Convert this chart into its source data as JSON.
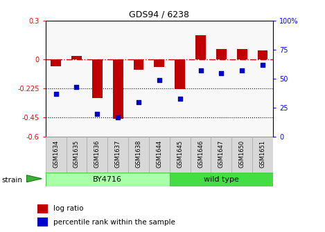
{
  "title": "GDS94 / 6238",
  "samples": [
    "GSM1634",
    "GSM1635",
    "GSM1636",
    "GSM1637",
    "GSM1638",
    "GSM1644",
    "GSM1645",
    "GSM1646",
    "GSM1647",
    "GSM1650",
    "GSM1651"
  ],
  "log_ratio": [
    -0.05,
    0.03,
    -0.3,
    -0.46,
    -0.08,
    -0.06,
    -0.23,
    0.19,
    0.08,
    0.08,
    0.07
  ],
  "percentile_rank": [
    37,
    43,
    20,
    17,
    30,
    49,
    33,
    57,
    55,
    57,
    62
  ],
  "ylim_left": [
    -0.6,
    0.3
  ],
  "ylim_right": [
    0,
    100
  ],
  "yticks_left": [
    0.3,
    0.0,
    -0.225,
    -0.45,
    -0.6
  ],
  "ytick_labels_left": [
    "0.3",
    "0",
    "-0.225",
    "-0.45",
    "-0.6"
  ],
  "yticks_right": [
    100,
    75,
    50,
    25,
    0
  ],
  "ytick_labels_right": [
    "100%",
    "75",
    "50",
    "25",
    "0"
  ],
  "hlines": [
    -0.225,
    -0.45
  ],
  "bar_color": "#c00000",
  "scatter_color": "#0000cc",
  "dashed_line_color": "#cc0000",
  "bar_width": 0.5,
  "groups": [
    {
      "label": "BY4716",
      "start": 0,
      "end": 5,
      "color": "#aaffaa",
      "edge_color": "#44cc44"
    },
    {
      "label": "wild type",
      "start": 6,
      "end": 10,
      "color": "#44dd44",
      "edge_color": "#44cc44"
    }
  ],
  "strain_label": "strain",
  "legend_log": "log ratio",
  "legend_pct": "percentile rank within the sample",
  "plot_bg": "#f8f8f8",
  "fig_bg": "#ffffff",
  "label_cell_color": "#d8d8d8",
  "label_cell_edge": "#aaaaaa"
}
